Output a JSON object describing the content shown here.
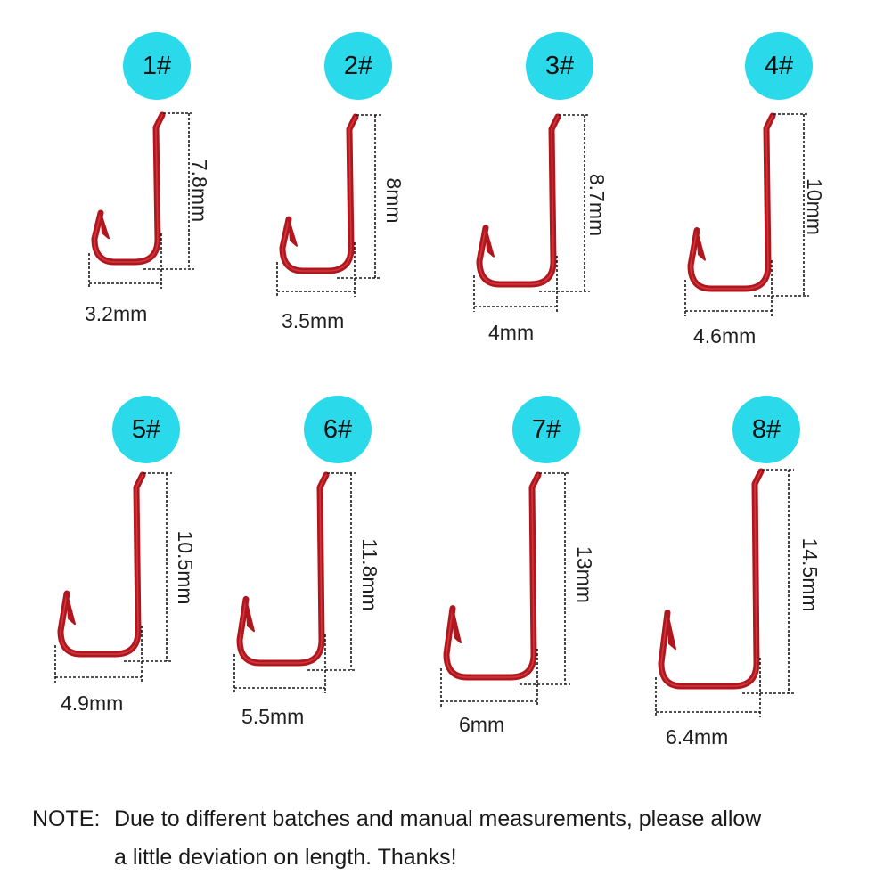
{
  "colors": {
    "badge": "#2ad9ea",
    "hook": "#b0161d",
    "hook_highlight": "#e0454a",
    "dim_line": "#1a1a1a",
    "label_text": "#1f1f1f"
  },
  "hooks": [
    {
      "id": "1#",
      "width_label": "3.2mm",
      "length_label": "7.8mm"
    },
    {
      "id": "2#",
      "width_label": "3.5mm",
      "length_label": "8mm"
    },
    {
      "id": "3#",
      "width_label": "4mm",
      "length_label": "8.7mm"
    },
    {
      "id": "4#",
      "width_label": "4.6mm",
      "length_label": "10mm"
    },
    {
      "id": "5#",
      "width_label": "4.9mm",
      "length_label": "10.5mm"
    },
    {
      "id": "6#",
      "width_label": "5.5mm",
      "length_label": "11.8mm"
    },
    {
      "id": "7#",
      "width_label": "6mm",
      "length_label": "13mm"
    },
    {
      "id": "8#",
      "width_label": "6.4mm",
      "length_label": "14.5mm"
    }
  ],
  "note": {
    "label": "NOTE:",
    "line1": "Due to different batches and manual measurements, please allow",
    "line2": "a little deviation on length. Thanks!"
  }
}
